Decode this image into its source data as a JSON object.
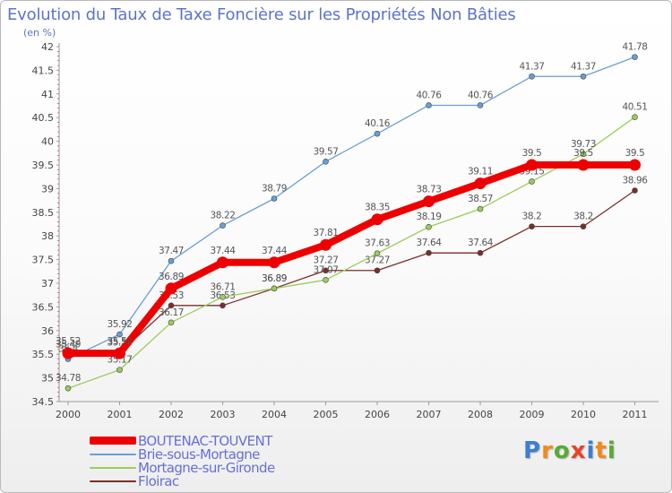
{
  "title": "Evolution du Taux de Taxe Foncière sur les Propriétés Non Bâties",
  "unit_label": "(en %)",
  "brand": {
    "letters": [
      "P",
      "r",
      "o",
      "x",
      "i",
      "t",
      "i"
    ],
    "colors": [
      "#3b7fd1",
      "#f08a1c",
      "#5aaa32",
      "#e8442c",
      "#3b7fd1",
      "#f08a1c",
      "#5aaa32"
    ]
  },
  "chart_data": {
    "type": "line",
    "title": "Evolution du Taux de Taxe Foncière sur les Propriétés Non Bâties",
    "ylabel": "(en %)",
    "xlabel": "",
    "ylim": [
      34.5,
      42
    ],
    "yticks": [
      "34.5",
      "35",
      "35.5",
      "36",
      "36.5",
      "37",
      "37.5",
      "38",
      "38.5",
      "39",
      "39.5",
      "40",
      "40.5",
      "41",
      "41.5",
      "42"
    ],
    "categories": [
      "2000",
      "2001",
      "2002",
      "2003",
      "2004",
      "2005",
      "2006",
      "2007",
      "2008",
      "2009",
      "2010",
      "2011"
    ],
    "series": [
      {
        "name": "BOUTENAC-TOUVENT",
        "color": "#ee0000",
        "values": [
          35.52,
          35.52,
          36.89,
          37.44,
          37.44,
          37.81,
          38.35,
          38.73,
          39.11,
          39.5,
          39.5,
          39.5
        ],
        "labels": [
          "35.52",
          "35.52",
          "36.89",
          "37.44",
          "37.44",
          "37.81",
          "38.35",
          "38.73",
          "39.11",
          "39.5",
          "39.5",
          "39.5"
        ]
      },
      {
        "name": "Brie-sous-Mortagne",
        "color": "#6a9fd4",
        "values": [
          35.4,
          35.92,
          37.47,
          38.22,
          38.79,
          39.57,
          40.16,
          40.76,
          40.76,
          41.37,
          41.37,
          41.78
        ],
        "labels": [
          "35.4",
          "35.92",
          "37.47",
          "38.22",
          "38.79",
          "39.57",
          "40.16",
          "40.76",
          "40.76",
          "41.37",
          "41.37",
          "41.78"
        ]
      },
      {
        "name": "Mortagne-sur-Gironde",
        "color": "#9acd5a",
        "values": [
          34.78,
          35.17,
          36.17,
          36.71,
          36.89,
          37.07,
          37.63,
          38.19,
          38.57,
          39.15,
          39.73,
          40.51
        ],
        "labels": [
          "34.78",
          "35.17",
          "36.17",
          "36.71",
          "36.89",
          "37.07",
          "37.63",
          "38.19",
          "38.57",
          "39.15",
          "39.73",
          "40.51"
        ]
      },
      {
        "name": "Floirac",
        "color": "#7a2e2a",
        "values": [
          35.49,
          35.53,
          36.53,
          36.53,
          36.89,
          37.27,
          37.27,
          37.64,
          37.64,
          38.2,
          38.2,
          38.96
        ],
        "labels": [
          "35.49",
          "35.53",
          "36.53",
          "36.53",
          "36.89",
          "37.27",
          "37.27",
          "37.64",
          "37.64",
          "38.2",
          "38.2",
          "38.96"
        ]
      }
    ],
    "legend_position": "bottom-left",
    "grid": false
  }
}
